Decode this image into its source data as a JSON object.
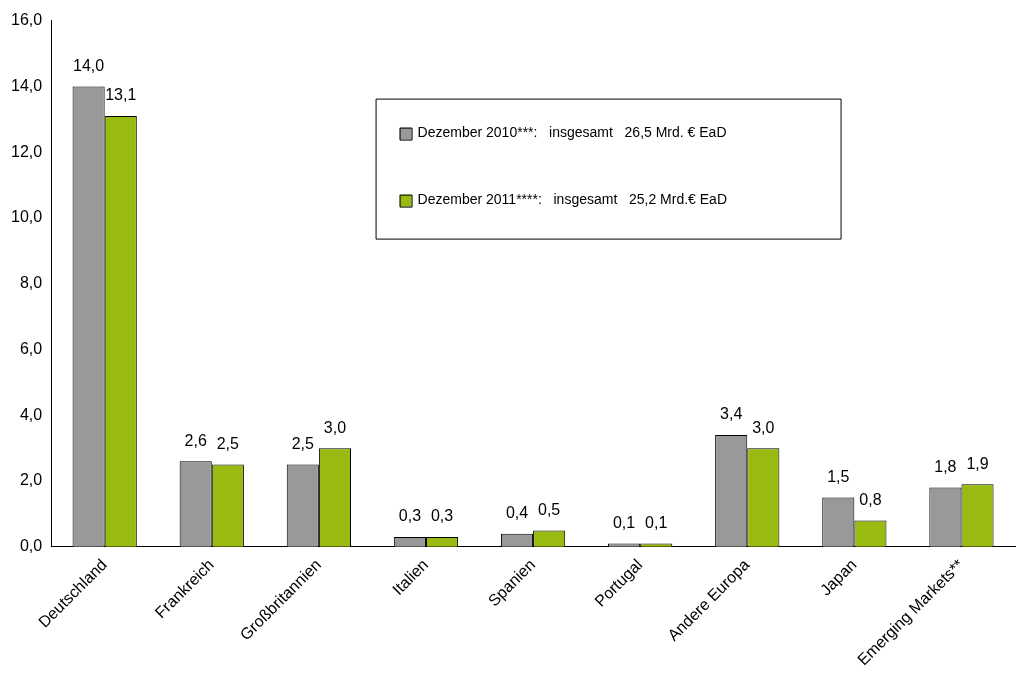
{
  "chart_data": {
    "type": "bar",
    "categories": [
      "Deutschland",
      "Frankreich",
      "Großbritannien",
      "Italien",
      "Spanien",
      "Portugal",
      "Andere Europa",
      "Japan",
      "Emerging Markets**"
    ],
    "series": [
      {
        "name": "Dezember 2010***:     insgesamt  26,5 Mrd. € EaD",
        "color": "#999999",
        "values": [
          14.0,
          2.6,
          2.5,
          0.3,
          0.4,
          0.1,
          3.4,
          1.5,
          1.8
        ],
        "value_labels": [
          "14,0",
          "2,6",
          "2,5",
          "0,3",
          "0,4",
          "0,1",
          "3,4",
          "1,5",
          "1,8"
        ]
      },
      {
        "name": "Dezember 2011****:   insgesamt  25,2 Mrd.€ EaD",
        "color": "#99bb11",
        "values": [
          13.1,
          2.5,
          3.0,
          0.3,
          0.5,
          0.1,
          3.0,
          0.8,
          1.9
        ],
        "value_labels": [
          "13,1",
          "2,5",
          "3,0",
          "0,3",
          "0,5",
          "0,1",
          "3,0",
          "0,8",
          "1,9"
        ]
      }
    ],
    "ylim": [
      0,
      16
    ],
    "yticks": [
      {
        "value": 0,
        "label": "0,0"
      },
      {
        "value": 2,
        "label": "2,0"
      },
      {
        "value": 4,
        "label": "4,0"
      },
      {
        "value": 6,
        "label": "6,0"
      },
      {
        "value": 8,
        "label": "8,0"
      },
      {
        "value": 10,
        "label": "10,0"
      },
      {
        "value": 12,
        "label": "12,0"
      },
      {
        "value": 14,
        "label": "14,0"
      },
      {
        "value": 16,
        "label": "16,0"
      }
    ],
    "grid": false,
    "legend": "top"
  }
}
